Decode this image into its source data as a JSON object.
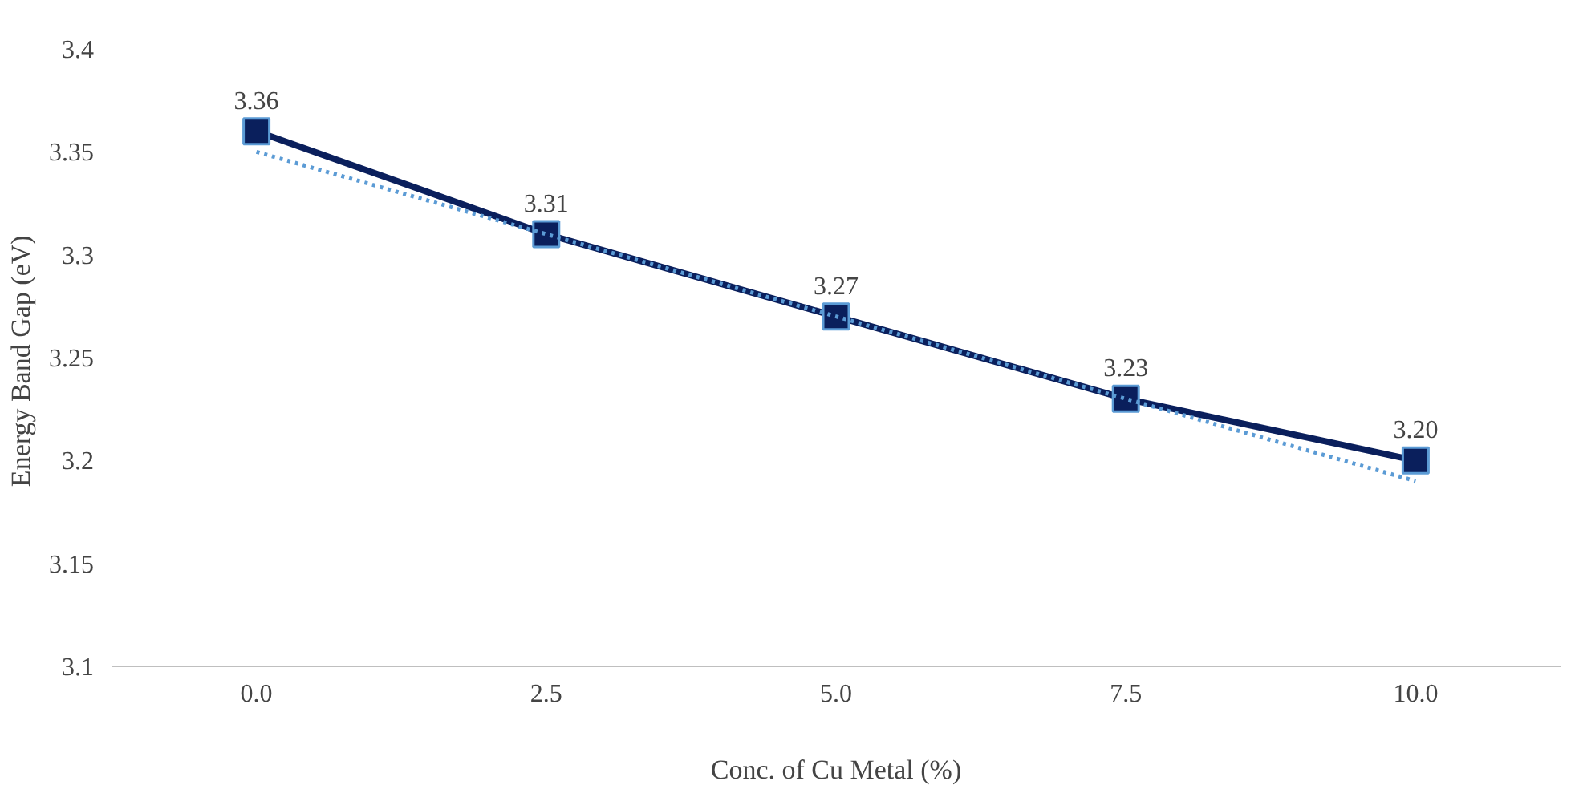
{
  "chart_data": {
    "type": "line",
    "xlabel": "Conc. of Cu Metal (%)",
    "ylabel": "Energy Band Gap  (eV)",
    "categories": [
      "0.0",
      "2.5",
      "5.0",
      "7.5",
      "10.0"
    ],
    "ylim": [
      3.1,
      3.4
    ],
    "yticks": [
      3.1,
      3.15,
      3.2,
      3.25,
      3.3,
      3.35,
      3.4
    ],
    "grid": false,
    "series": [
      {
        "color": "#0a1f5c",
        "values": [
          3.36,
          3.31,
          3.27,
          3.23,
          3.2
        ],
        "value_labels": [
          "3.36",
          "3.31",
          "3.27",
          "3.23",
          "3.20"
        ],
        "marker": "square",
        "line_style": "solid"
      },
      {
        "color": "#5b9bd5",
        "values": [
          3.35,
          3.31,
          3.27,
          3.23,
          3.19
        ],
        "marker": "none",
        "line_style": "dotted"
      }
    ]
  }
}
